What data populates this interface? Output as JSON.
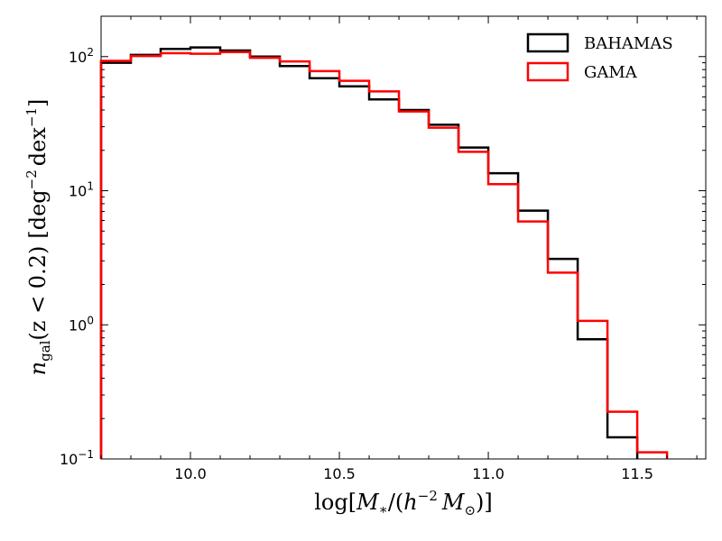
{
  "chart_data": {
    "type": "histogram",
    "xlabel": {
      "base": "log[",
      "M": "M",
      "Msub": "∗",
      "mid": "/(",
      "h": "h",
      "hexp": "−2",
      "M2": "M",
      "M2sub": "⊙",
      "end": ")]"
    },
    "ylabel": {
      "n": "n",
      "nsub": "gal",
      "cond": "(z < 0.2)",
      "units": "[deg",
      "exp1": "−2",
      "dex": "dex",
      "exp2": "−1",
      "close": "]"
    },
    "xlim": [
      9.7,
      11.73
    ],
    "ylim": [
      0.1,
      200
    ],
    "yscale": "log",
    "x_ticks": [
      {
        "value": 10.0,
        "label": "10.0"
      },
      {
        "value": 10.5,
        "label": "10.5"
      },
      {
        "value": 11.0,
        "label": "11.0"
      },
      {
        "value": 11.5,
        "label": "11.5"
      }
    ],
    "y_ticks": [
      {
        "value": 0.1,
        "base": "10",
        "exp": "−1"
      },
      {
        "value": 1,
        "base": "10",
        "exp": "0"
      },
      {
        "value": 10,
        "base": "10",
        "exp": "1"
      },
      {
        "value": 100,
        "base": "10",
        "exp": "2"
      }
    ],
    "bin_edges": [
      9.7,
      9.8,
      9.9,
      10.0,
      10.1,
      10.2,
      10.3,
      10.4,
      10.5,
      10.6,
      10.7,
      10.8,
      10.9,
      11.0,
      11.1,
      11.2,
      11.3,
      11.4,
      11.5,
      11.6
    ],
    "legend_position": "top-right",
    "series": [
      {
        "name": "BAHAMAS",
        "color": "#000000",
        "values": [
          90,
          103,
          114,
          117,
          111,
          100,
          85,
          69,
          60,
          48,
          40,
          31,
          21,
          13.5,
          7.1,
          3.1,
          0.78,
          0.145
        ]
      },
      {
        "name": "GAMA",
        "color": "#ff0000",
        "values": [
          93,
          101,
          106,
          105,
          108,
          98,
          92,
          78,
          66,
          55,
          39,
          29.5,
          19.5,
          11.2,
          5.9,
          2.45,
          1.07,
          0.225,
          0.112
        ]
      }
    ]
  }
}
